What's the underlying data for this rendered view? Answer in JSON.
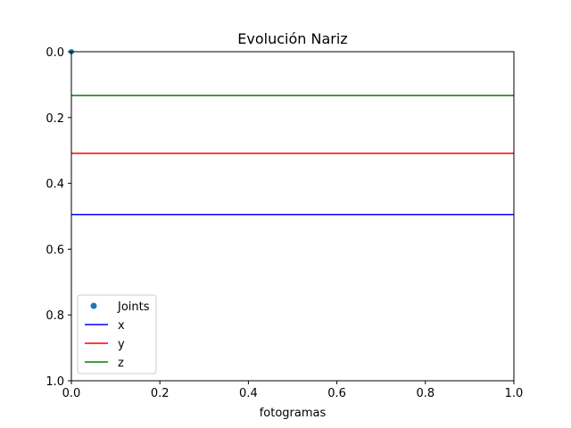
{
  "chart_data": {
    "type": "line",
    "title": "Evolución Nariz",
    "xlabel": "fotogramas",
    "ylabel": "",
    "xlim": [
      0.0,
      1.0
    ],
    "ylim": [
      1.0,
      0.0
    ],
    "y_inverted": true,
    "grid": false,
    "legend_position": "lower-left",
    "x_ticks": [
      "0.0",
      "0.2",
      "0.4",
      "0.6",
      "0.8",
      "1.0"
    ],
    "y_ticks": [
      "0.0",
      "0.2",
      "0.4",
      "0.6",
      "0.8",
      "1.0"
    ],
    "series": [
      {
        "name": "Joints",
        "type": "scatter",
        "color": "#1f77b4",
        "x": [
          0.0
        ],
        "y": [
          0.0
        ]
      },
      {
        "name": "x",
        "type": "hline",
        "color": "#0000ff",
        "y": 0.495
      },
      {
        "name": "y",
        "type": "hline",
        "color": "#ff0000",
        "y": 0.309
      },
      {
        "name": "z",
        "type": "hline",
        "color": "#008000",
        "y": 0.133
      }
    ]
  }
}
